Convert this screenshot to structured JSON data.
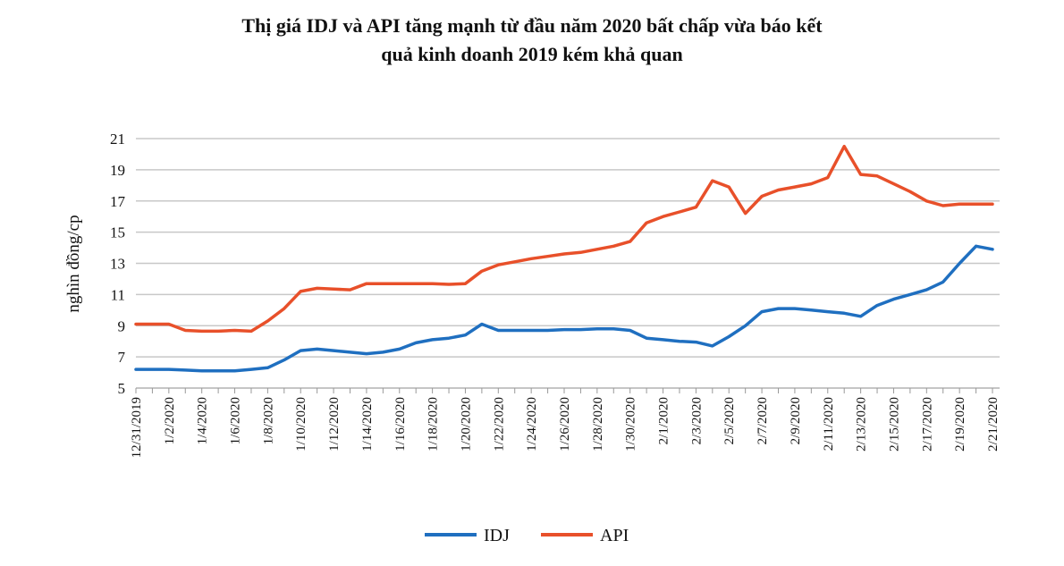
{
  "chart_data": {
    "type": "line",
    "title": [
      "Thị giá IDJ và API tăng mạnh từ đầu năm 2020 bất chấp vừa báo kết",
      "quả kinh doanh 2019 kém khả quan"
    ],
    "y_label": "nghìn đồng/cp",
    "categories": [
      "12/31/2019",
      null,
      "1/2/2020",
      null,
      "1/4/2020",
      null,
      "1/6/2020",
      null,
      "1/8/2020",
      null,
      "1/10/2020",
      null,
      "1/12/2020",
      null,
      "1/14/2020",
      null,
      "1/16/2020",
      null,
      "1/18/2020",
      null,
      "1/20/2020",
      null,
      "1/22/2020",
      null,
      "1/24/2020",
      null,
      "1/26/2020",
      null,
      "1/28/2020",
      null,
      "1/30/2020",
      null,
      "2/1/2020",
      null,
      "2/3/2020",
      null,
      "2/5/2020",
      null,
      "2/7/2020",
      null,
      "2/9/2020",
      null,
      "2/11/2020",
      null,
      "2/13/2020",
      null,
      "2/15/2020",
      null,
      "2/17/2020",
      null,
      "2/19/2020",
      null,
      "2/21/2020"
    ],
    "series": [
      {
        "name": "IDJ",
        "color": "#1f6fc0",
        "values": [
          6.2,
          6.2,
          6.2,
          6.15,
          6.1,
          6.1,
          6.1,
          6.2,
          6.3,
          6.8,
          7.4,
          7.5,
          7.4,
          7.3,
          7.2,
          7.3,
          7.5,
          7.9,
          8.1,
          8.2,
          8.4,
          9.1,
          8.7,
          8.7,
          8.7,
          8.7,
          8.75,
          8.75,
          8.8,
          8.8,
          8.7,
          8.2,
          8.1,
          8.0,
          7.95,
          7.7,
          8.3,
          9.0,
          9.9,
          10.1,
          10.1,
          10.0,
          9.9,
          9.8,
          9.6,
          10.3,
          10.7,
          11.0,
          11.3,
          11.8,
          13.0,
          14.1,
          13.9
        ]
      },
      {
        "name": "API",
        "color": "#e8502a",
        "values": [
          9.1,
          9.1,
          9.1,
          8.7,
          8.65,
          8.65,
          8.7,
          8.65,
          9.3,
          10.1,
          11.2,
          11.4,
          11.35,
          11.3,
          11.7,
          11.7,
          11.7,
          11.7,
          11.7,
          11.65,
          11.7,
          12.5,
          12.9,
          13.1,
          13.3,
          13.45,
          13.6,
          13.7,
          13.9,
          14.1,
          14.4,
          15.6,
          16.0,
          16.3,
          16.6,
          18.3,
          17.9,
          16.2,
          17.3,
          17.7,
          17.9,
          18.1,
          18.5,
          20.5,
          18.7,
          18.6,
          18.1,
          17.6,
          17.0,
          16.7,
          16.8,
          16.8,
          16.8
        ]
      }
    ],
    "ylim": [
      5,
      21
    ],
    "yticks": [
      5,
      7,
      9,
      11,
      13,
      15,
      17,
      19,
      21
    ],
    "grid": true,
    "legend": "bottom"
  }
}
